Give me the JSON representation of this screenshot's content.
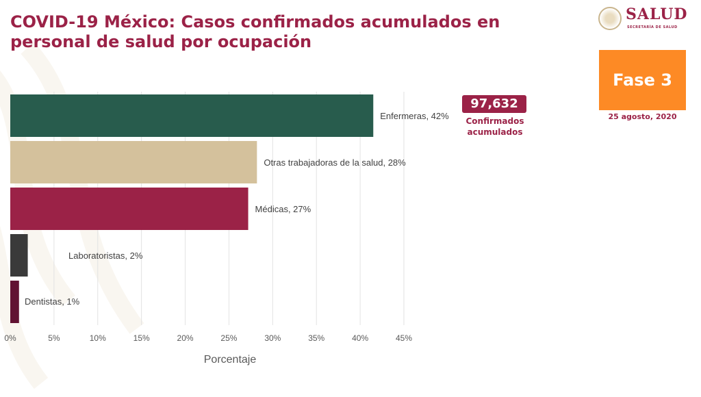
{
  "header": {
    "title": "COVID-19 México: Casos confirmados acumulados en personal de salud por ocupación"
  },
  "logo": {
    "name": "SALUD",
    "subtitle": "SECRETARÍA DE SALUD"
  },
  "phase": {
    "label": "Fase 3",
    "date": "25 agosto, 2020"
  },
  "summary": {
    "value": "97,632",
    "caption": "Confirmados acumulados"
  },
  "chart_data": {
    "type": "bar",
    "orientation": "horizontal",
    "categories": [
      "Enfermeras",
      "Otras trabajadoras de la salud",
      "Médicas",
      "Laboratoristas",
      "Dentistas"
    ],
    "values": [
      41.5,
      28.2,
      27.2,
      2.0,
      1.0
    ],
    "data_labels": [
      "Enfermeras, 42%",
      "Otras trabajadoras de la salud, 28%",
      "Médicas, 27%",
      "Laboratoristas, 2%",
      "Dentistas, 1%"
    ],
    "colors": [
      "#285c4d",
      "#d4c19c",
      "#9b2247",
      "#3a3a3a",
      "#611232"
    ],
    "xlabel": "Porcentaje",
    "xlim": [
      0,
      45
    ],
    "xticks": [
      0,
      5,
      10,
      15,
      20,
      25,
      30,
      35,
      40,
      45
    ],
    "xtick_labels": [
      "0%",
      "5%",
      "10%",
      "15%",
      "20%",
      "25%",
      "30%",
      "35%",
      "40%",
      "45%"
    ],
    "grid": true
  }
}
